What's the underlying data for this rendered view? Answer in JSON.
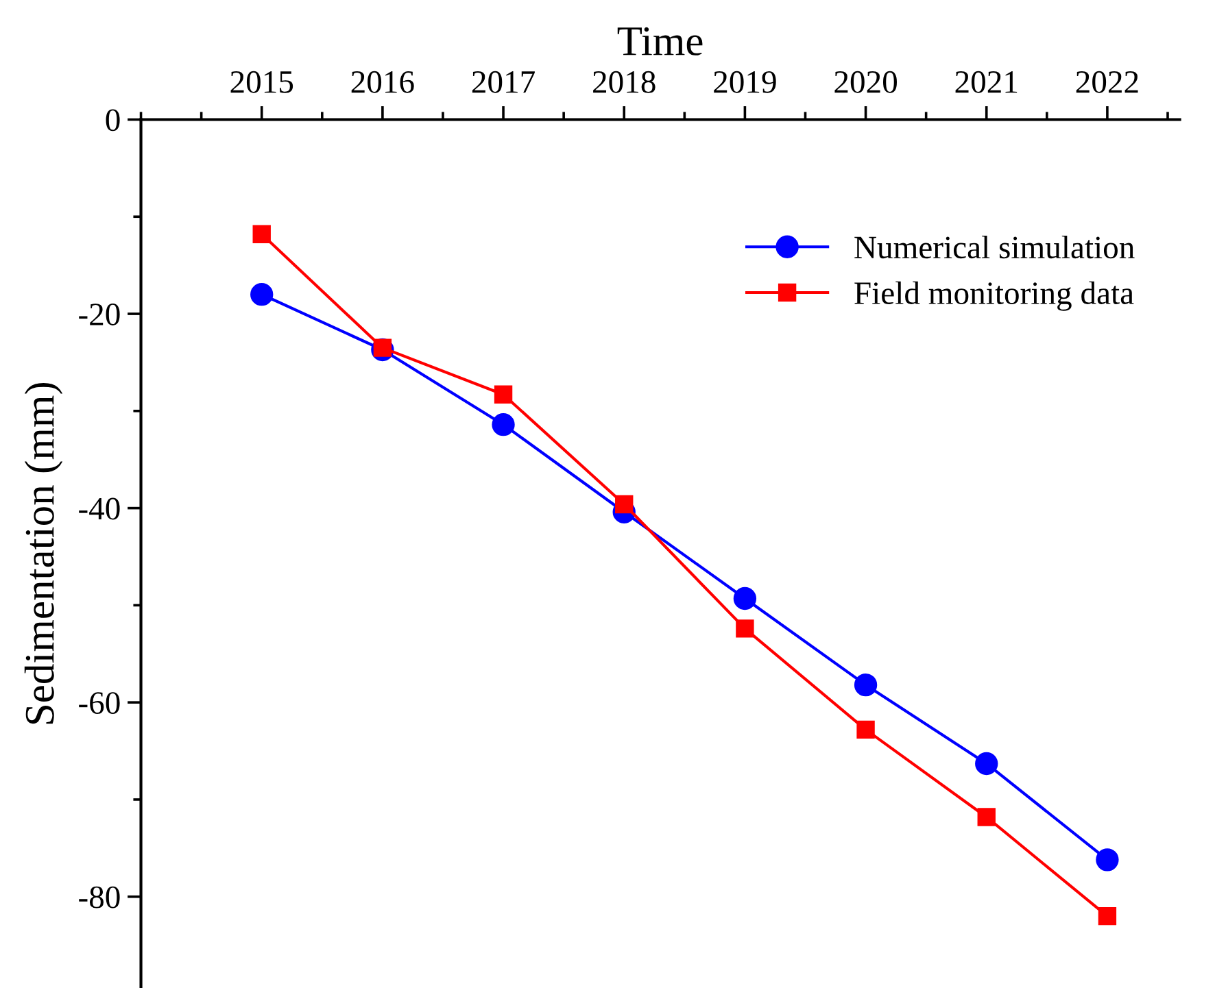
{
  "chart_data": {
    "type": "line",
    "xlabel": "Time",
    "ylabel": "Sedimentation (mm)",
    "x": [
      2015,
      2016,
      2017,
      2018,
      2019,
      2020,
      2021,
      2022
    ],
    "series": [
      {
        "name": "Numerical simulation",
        "color": "#0000ff",
        "marker": "circle",
        "values": [
          -18,
          -23.7,
          -31.4,
          -40.4,
          -49.3,
          -58.2,
          -66.3,
          -76.2
        ]
      },
      {
        "name": "Field monitoring data",
        "color": "#ff0000",
        "marker": "square",
        "values": [
          -11.8,
          -23.5,
          -28.3,
          -39.6,
          -52.4,
          -62.8,
          -71.8,
          -82.0
        ]
      }
    ],
    "xlim": [
      2014,
      2022.6
    ],
    "xticks": [
      2015,
      2016,
      2017,
      2018,
      2019,
      2020,
      2021,
      2022
    ],
    "ylim": [
      -89.4,
      0
    ],
    "yticks": [
      0,
      -20,
      -40,
      -60,
      -80
    ],
    "grid": false,
    "legend": "top right",
    "line_style": "solid"
  }
}
